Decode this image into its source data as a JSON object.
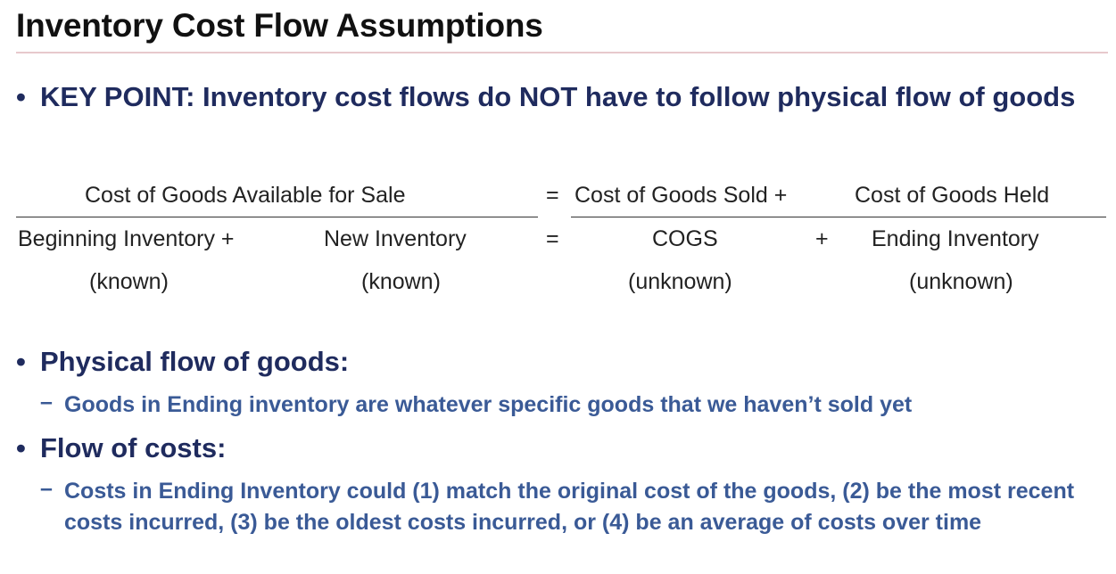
{
  "slide": {
    "title": "Inventory Cost Flow Assumptions"
  },
  "key_point": {
    "bullet": "•",
    "text": "KEY POINT: Inventory cost flows do NOT have to follow physical flow of goods"
  },
  "equation": {
    "top_left": "Cost of Goods Available for Sale",
    "top_equals": "=",
    "top_cogs": "Cost of Goods Sold +",
    "top_held": "Cost of Goods Held",
    "beginning": "Beginning Inventory +",
    "new_inventory": "New Inventory",
    "bottom_equals": "=",
    "cogs": "COGS",
    "plus": "+",
    "ending": "Ending Inventory",
    "known_1": "(known)",
    "known_2": "(known)",
    "unknown_1": "(unknown)",
    "unknown_2": "(unknown)"
  },
  "physical": {
    "bullet": "•",
    "heading": "Physical flow of goods:",
    "dash": "–",
    "detail": "Goods in Ending inventory are whatever specific goods that we haven’t sold yet"
  },
  "costs": {
    "bullet": "•",
    "heading": "Flow of costs:",
    "dash": "–",
    "detail": "Costs in Ending Inventory could (1) match the original cost of the goods, (2) be the most recent costs incurred, (3) be the oldest costs incurred, or (4) be an average of costs over time"
  },
  "colors": {
    "heading_blue": "#1f2b5e",
    "sub_blue": "#3a5a96",
    "title_rule": "#e7c9cc"
  }
}
